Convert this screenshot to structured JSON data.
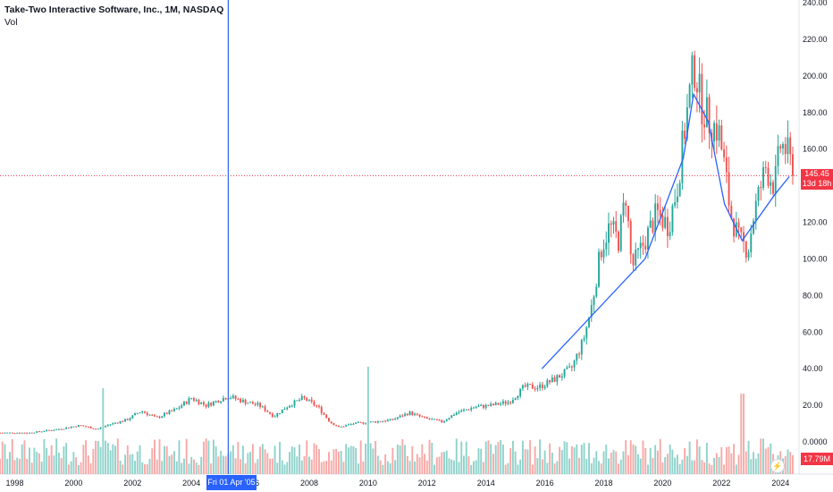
{
  "legend": {
    "symbol": "Take-Two Interactive Software, Inc., 1M, NASDAQ",
    "volume_label": "Vol"
  },
  "price_tag": {
    "value": "145.45",
    "countdown": "13d 18h"
  },
  "volume_tag": {
    "value": "17.79M"
  },
  "crosshair": {
    "label": "Fri 01 Apr '05",
    "x_year": 2005.25
  },
  "colors": {
    "up": "#26a69a",
    "down": "#ef5350",
    "up_vol": "#8fd2cb",
    "down_vol": "#f7a9a7",
    "trendline": "#2962ff",
    "crosshair": "#2962ff",
    "price_line": "#f23645"
  },
  "chart_data": {
    "type": "candlestick",
    "title": "Take-Two Interactive Software, Inc., 1M, NASDAQ",
    "xlim": [
      1997.5,
      2024.6
    ],
    "ylim": [
      -7,
      240
    ],
    "x_ticks": [
      "1998",
      "2000",
      "2002",
      "2004",
      "2006",
      "2008",
      "2010",
      "2012",
      "2014",
      "2016",
      "2018",
      "2020",
      "2022",
      "2024"
    ],
    "y_ticks": [
      "240.00",
      "220.00",
      "200.00",
      "180.00",
      "160.00",
      "140.00",
      "120.00",
      "100.00",
      "80.00",
      "60.00",
      "40.00",
      "20.00",
      "0.0000"
    ],
    "last_price": 145.45,
    "price_anchors": [
      [
        1997.5,
        5
      ],
      [
        1998.5,
        5
      ],
      [
        1999.5,
        7
      ],
      [
        2000.2,
        9
      ],
      [
        2000.8,
        7
      ],
      [
        2001.3,
        10
      ],
      [
        2001.8,
        12
      ],
      [
        2002.3,
        17
      ],
      [
        2002.8,
        13
      ],
      [
        2003.5,
        18
      ],
      [
        2004.0,
        24
      ],
      [
        2004.5,
        20
      ],
      [
        2005.25,
        25
      ],
      [
        2005.8,
        22
      ],
      [
        2006.3,
        20
      ],
      [
        2006.8,
        14
      ],
      [
        2007.3,
        20
      ],
      [
        2007.8,
        24
      ],
      [
        2008.3,
        19
      ],
      [
        2008.7,
        11
      ],
      [
        2009.0,
        8
      ],
      [
        2009.5,
        10
      ],
      [
        2010.2,
        11
      ],
      [
        2010.8,
        12
      ],
      [
        2011.4,
        16
      ],
      [
        2011.9,
        13
      ],
      [
        2012.5,
        11
      ],
      [
        2013.0,
        16
      ],
      [
        2013.6,
        19
      ],
      [
        2014.2,
        20
      ],
      [
        2014.8,
        22
      ],
      [
        2015.3,
        30
      ],
      [
        2015.8,
        30
      ],
      [
        2016.3,
        34
      ],
      [
        2016.9,
        40
      ],
      [
        2017.3,
        55
      ],
      [
        2017.6,
        75
      ],
      [
        2017.9,
        105
      ],
      [
        2018.2,
        118
      ],
      [
        2018.5,
        110
      ],
      [
        2018.75,
        135
      ],
      [
        2018.95,
        95
      ],
      [
        2019.4,
        110
      ],
      [
        2019.8,
        125
      ],
      [
        2020.2,
        118
      ],
      [
        2020.5,
        140
      ],
      [
        2020.7,
        165
      ],
      [
        2021.0,
        200
      ],
      [
        2021.1,
        205
      ],
      [
        2021.3,
        185
      ],
      [
        2021.6,
        175
      ],
      [
        2021.9,
        170
      ],
      [
        2022.1,
        150
      ],
      [
        2022.3,
        125
      ],
      [
        2022.6,
        110
      ],
      [
        2022.9,
        105
      ],
      [
        2023.1,
        125
      ],
      [
        2023.5,
        150
      ],
      [
        2023.8,
        140
      ],
      [
        2024.0,
        162
      ],
      [
        2024.2,
        160
      ],
      [
        2024.45,
        145.45
      ]
    ],
    "trendline": [
      [
        2015.9,
        40
      ],
      [
        2019.4,
        100
      ],
      [
        2020.7,
        155
      ],
      [
        2021.05,
        190
      ],
      [
        2021.55,
        175
      ],
      [
        2022.1,
        130
      ],
      [
        2022.7,
        110
      ],
      [
        2023.8,
        135
      ],
      [
        2024.3,
        145
      ]
    ],
    "volume_annotation_max": 47
  }
}
